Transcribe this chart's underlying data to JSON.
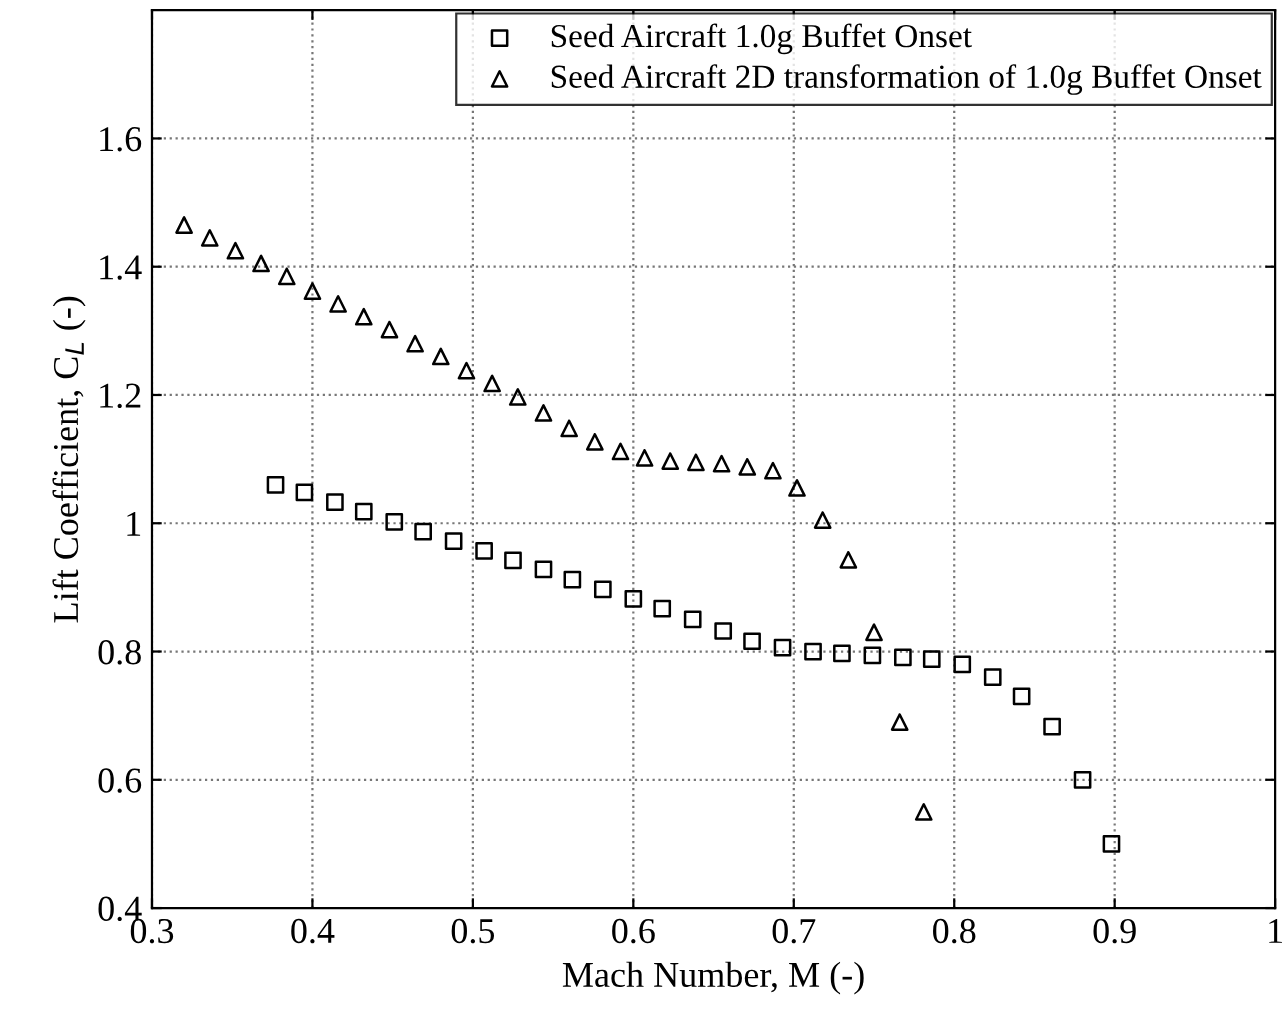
{
  "chart_data": {
    "type": "scatter",
    "xlabel": "Mach Number, M (-)",
    "ylabel": "Lift Coefficient, C$_{L}$ (-)",
    "xlim": [
      0.3,
      1
    ],
    "ylim": [
      0.4,
      1.8
    ],
    "xticks": [
      0.3,
      0.4,
      0.5,
      0.6,
      0.7,
      0.8,
      0.9,
      1
    ],
    "yticks": [
      0.4,
      0.6,
      0.8,
      1,
      1.2,
      1.4,
      1.6
    ],
    "grid": true,
    "legend": "top right",
    "series": [
      {
        "name": "Seed Aircraft 1.0g Buffet Onset",
        "color": "#000000",
        "marker": "square",
        "x": [
          0.377,
          0.395,
          0.414,
          0.432,
          0.451,
          0.469,
          0.488,
          0.507,
          0.525,
          0.544,
          0.562,
          0.581,
          0.6,
          0.618,
          0.637,
          0.656,
          0.674,
          0.693,
          0.712,
          0.73,
          0.749,
          0.768,
          0.786,
          0.805,
          0.824,
          0.842,
          0.861,
          0.88,
          0.898
        ],
        "values": [
          1.06,
          1.048,
          1.033,
          1.018,
          1.002,
          0.987,
          0.972,
          0.957,
          0.942,
          0.928,
          0.912,
          0.897,
          0.882,
          0.867,
          0.85,
          0.832,
          0.816,
          0.806,
          0.8,
          0.797,
          0.794,
          0.791,
          0.788,
          0.78,
          0.76,
          0.73,
          0.683,
          0.6,
          0.5
        ]
      },
      {
        "name": "Seed Aircraft 2D transformation of 1.0g Buffet Onset",
        "color": "#000000",
        "marker": "triangle",
        "x": [
          0.32,
          0.336,
          0.352,
          0.368,
          0.384,
          0.4,
          0.416,
          0.432,
          0.448,
          0.464,
          0.48,
          0.496,
          0.512,
          0.528,
          0.544,
          0.56,
          0.576,
          0.592,
          0.607,
          0.623,
          0.639,
          0.655,
          0.671,
          0.687,
          0.702,
          0.718,
          0.734,
          0.75,
          0.766,
          0.781
        ],
        "values": [
          1.465,
          1.445,
          1.425,
          1.405,
          1.385,
          1.362,
          1.342,
          1.322,
          1.302,
          1.28,
          1.26,
          1.238,
          1.218,
          1.197,
          1.172,
          1.148,
          1.127,
          1.112,
          1.102,
          1.097,
          1.095,
          1.093,
          1.088,
          1.082,
          1.055,
          1.005,
          0.943,
          0.83,
          0.69,
          0.55
        ]
      }
    ]
  }
}
